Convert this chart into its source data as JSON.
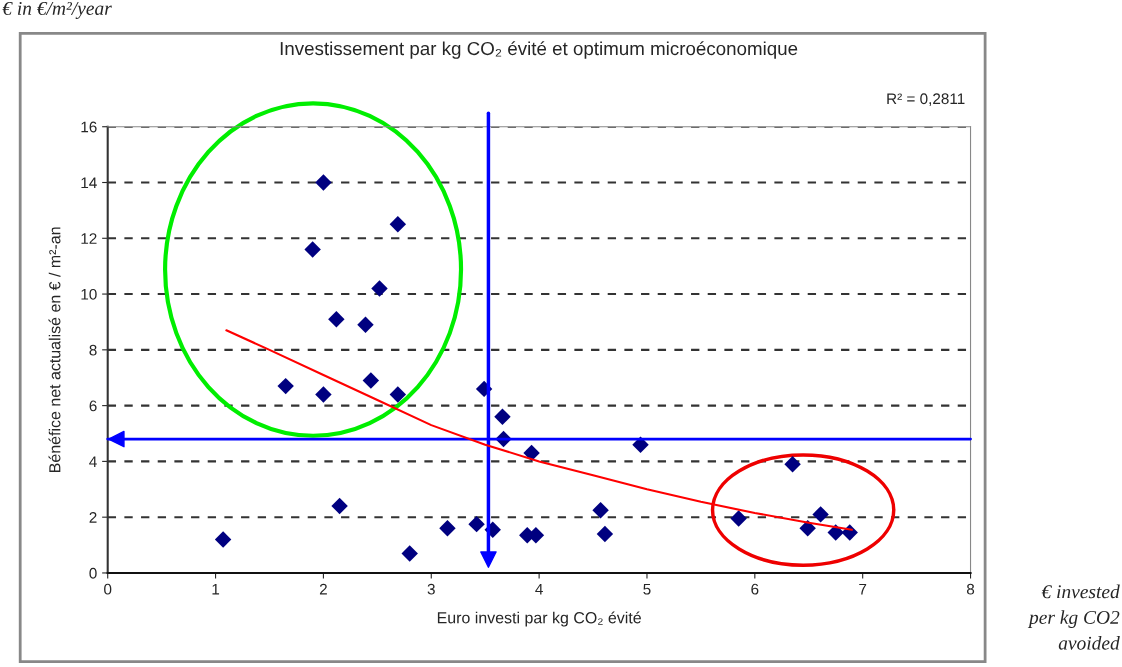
{
  "chart_data": {
    "type": "scatter",
    "title": "Investissement par kg CO₂ évité et optimum microéconomique",
    "xlabel": "Euro investi par kg CO₂ évité",
    "ylabel": "Bénéfice net actualisé en € / m²-an",
    "annotations": [
      "R² = 0,2811",
      "€ in €/m²/year",
      "€ invested\nper kg CO2\navoided"
    ],
    "series": [
      {
        "color": "#000080",
        "marker": "diamond",
        "x": [
          1.07,
          1.65,
          1.9,
          2.0,
          2.0,
          2.12,
          2.15,
          2.39,
          2.44,
          2.52,
          2.69,
          2.69,
          2.8,
          3.15,
          3.42,
          3.49,
          3.57,
          3.66,
          3.67,
          3.89,
          3.93,
          3.97,
          4.57,
          4.61,
          4.94,
          5.85,
          6.35,
          6.49,
          6.61,
          6.75,
          6.88
        ],
        "values": [
          1.2,
          6.7,
          11.6,
          14.0,
          6.4,
          9.1,
          2.4,
          8.9,
          6.9,
          10.2,
          12.5,
          6.4,
          0.7,
          1.6,
          1.75,
          6.6,
          1.55,
          5.6,
          4.8,
          1.35,
          4.3,
          1.35,
          2.25,
          1.4,
          4.6,
          1.95,
          3.9,
          1.6,
          2.1,
          1.45,
          1.45
        ]
      },
      {
        "type": "line",
        "color": "#ff0000",
        "marker": "none",
        "x": [
          1.1,
          1.5,
          2.0,
          2.5,
          3.0,
          3.5,
          4.0,
          4.5,
          5.0,
          5.5,
          6.0,
          6.5,
          6.9
        ],
        "values": [
          8.7,
          8.0,
          7.1,
          6.2,
          5.3,
          4.6,
          4.0,
          3.5,
          3.0,
          2.55,
          2.15,
          1.8,
          1.55
        ]
      }
    ],
    "ref_lines": [
      {
        "axis": "x",
        "value": 3.53,
        "color": "#0000ff"
      },
      {
        "axis": "y",
        "value": 4.8,
        "color": "#0000ff"
      }
    ],
    "xlim": [
      0,
      8
    ],
    "xticks": [
      0,
      1,
      2,
      3,
      4,
      5,
      6,
      7,
      8
    ],
    "ylim": [
      0,
      16
    ],
    "yticks": [
      0,
      2,
      4,
      6,
      8,
      10,
      12,
      14,
      16
    ],
    "grid": "y"
  }
}
